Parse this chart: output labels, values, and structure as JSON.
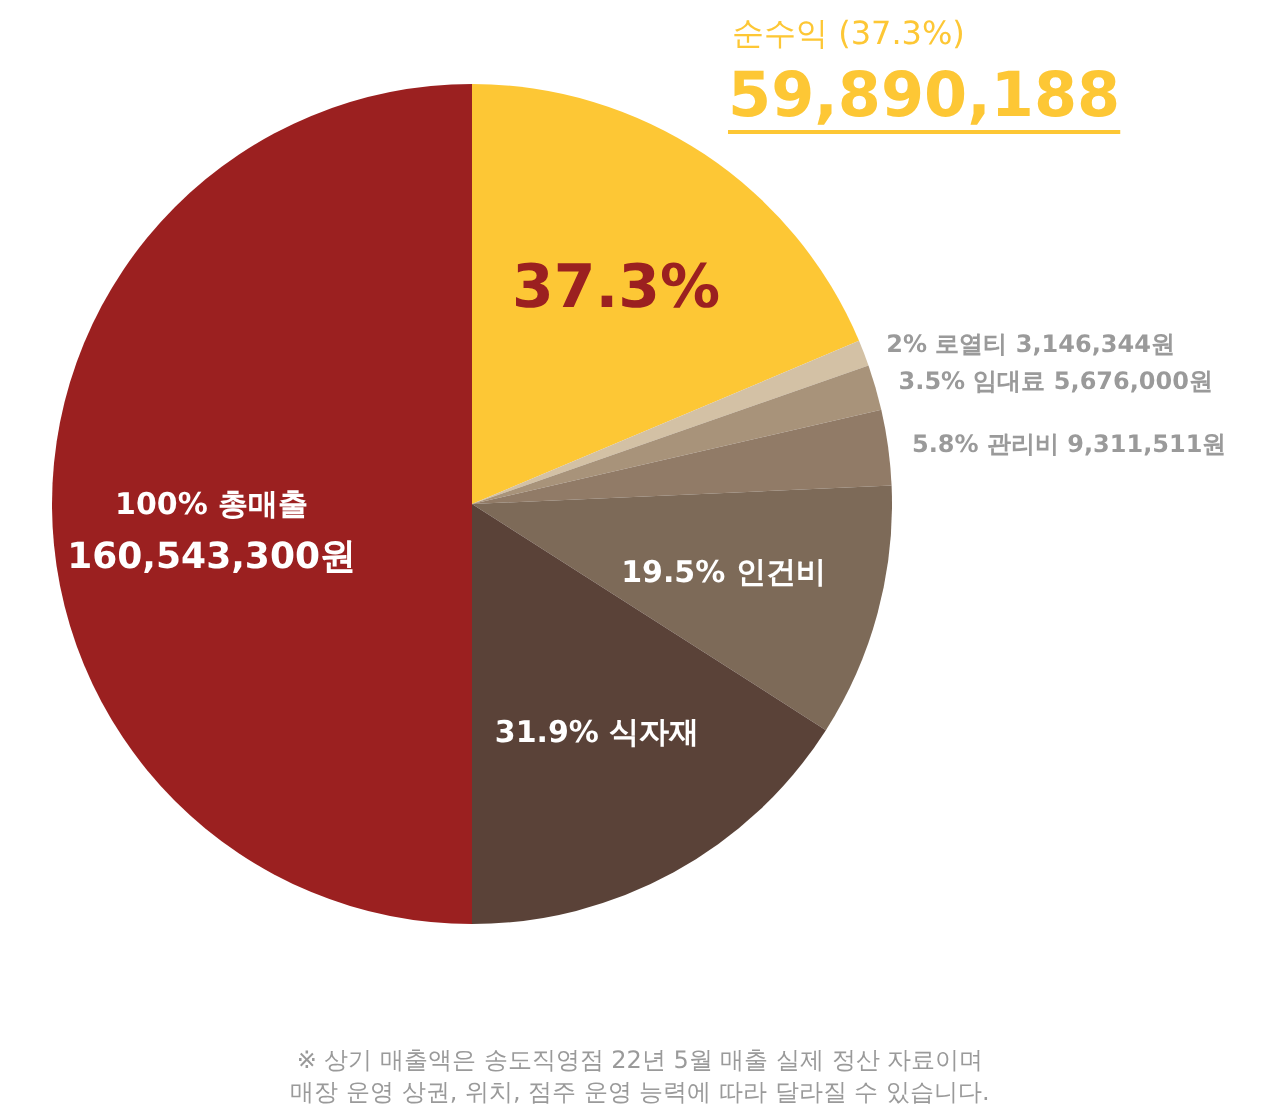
{
  "chart_data": {
    "type": "pie",
    "categories": [
      "37.3%",
      "2% 로열티 3,146,344원",
      "3.5% 임대료 5,676,000원",
      "5.8% 관리비 9,311,511원",
      "19.5% 인건비",
      "31.9% 식자재",
      "100% 총매출"
    ],
    "values": [
      37.3,
      2,
      3.5,
      5.8,
      19.5,
      31.9,
      100
    ],
    "colors": [
      "#fdc735",
      "#d3c1a5",
      "#a8937a",
      "#917b67",
      "#7d6a58",
      "#5a4238",
      "#9b2020"
    ],
    "annotations": [
      "순수익 (37.3%)",
      "59,890,188",
      "160,543,300원",
      "※ 상기 매출액은 송도직영점 22년 5월 매출 실제 정산 자료이며",
      "매장 운영 상권, 위치, 점주 운영 능력에 따라 달라질 수 있습니다."
    ]
  }
}
